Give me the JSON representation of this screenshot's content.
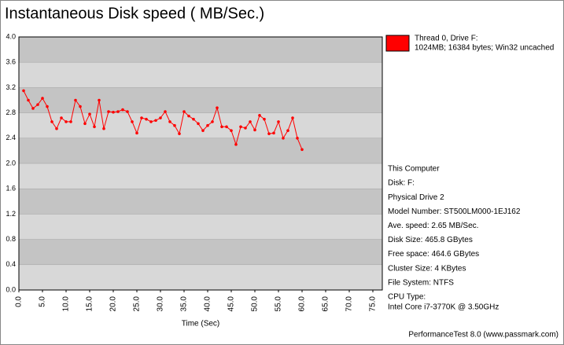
{
  "chart_data": {
    "type": "line",
    "title": "Instantaneous Disk speed ( MB/Sec.)",
    "x_label": "Time (Sec)",
    "footer": "PerformanceTest 8.0 (www.passmark.com)",
    "band_colors": [
      "#d8d8d8",
      "#c4c4c4"
    ],
    "xlim": [
      0,
      77
    ],
    "ylim": [
      0,
      4
    ],
    "xticks": [
      {
        "value": 0,
        "label": "0.0"
      },
      {
        "value": 5,
        "label": "5.0"
      },
      {
        "value": 10,
        "label": "10.0"
      },
      {
        "value": 15,
        "label": "15.0"
      },
      {
        "value": 20,
        "label": "20.0"
      },
      {
        "value": 25,
        "label": "25.0"
      },
      {
        "value": 30,
        "label": "30.0"
      },
      {
        "value": 35,
        "label": "35.0"
      },
      {
        "value": 40,
        "label": "40.0"
      },
      {
        "value": 45,
        "label": "45.0"
      },
      {
        "value": 50,
        "label": "50.0"
      },
      {
        "value": 55,
        "label": "55.0"
      },
      {
        "value": 60,
        "label": "60.0"
      },
      {
        "value": 65,
        "label": "65.0"
      },
      {
        "value": 70,
        "label": "70.0"
      },
      {
        "value": 75,
        "label": "75.0"
      }
    ],
    "yticks": [
      {
        "value": 0,
        "label": "0.0"
      },
      0.4,
      0.8,
      1.2,
      1.6,
      {
        "value": 2,
        "label": "2.0"
      },
      2.4,
      2.8,
      3.2,
      3.6,
      {
        "value": 4,
        "label": "4.0"
      }
    ],
    "x": [
      1,
      2,
      3,
      4,
      5,
      6,
      7,
      8,
      9,
      10,
      11,
      12,
      13,
      14,
      15,
      16,
      17,
      18,
      19,
      20,
      21,
      22,
      23,
      24,
      25,
      26,
      27,
      28,
      29,
      30,
      31,
      32,
      33,
      34,
      35,
      36,
      37,
      38,
      39,
      40,
      41,
      42,
      43,
      44,
      45,
      46,
      47,
      48,
      49,
      50,
      51,
      52,
      53,
      54,
      55,
      56,
      57,
      58,
      59,
      60
    ],
    "series": [
      {
        "name": "Thread 0, Drive F:",
        "subtitle": "1024MB; 16384 bytes; Win32 uncached",
        "color": "#ff0000",
        "values": [
          3.15,
          3.0,
          2.87,
          2.93,
          3.03,
          2.9,
          2.66,
          2.55,
          2.72,
          2.66,
          2.66,
          3.0,
          2.9,
          2.63,
          2.78,
          2.58,
          3.0,
          2.55,
          2.82,
          2.81,
          2.82,
          2.85,
          2.82,
          2.66,
          2.48,
          2.72,
          2.7,
          2.66,
          2.68,
          2.72,
          2.82,
          2.66,
          2.6,
          2.47,
          2.82,
          2.75,
          2.7,
          2.63,
          2.52,
          2.6,
          2.66,
          2.88,
          2.58,
          2.58,
          2.52,
          2.3,
          2.58,
          2.56,
          2.66,
          2.53,
          2.76,
          2.7,
          2.47,
          2.48,
          2.66,
          2.4,
          2.52,
          2.72,
          2.4,
          2.22
        ]
      }
    ],
    "info": [
      "This Computer",
      "Disk: F:",
      "Physical Drive 2",
      "Model Number: ST500LM000-1EJ162",
      "Ave. speed: 2.65 MB/Sec.",
      "Disk Size: 465.8 GBytes",
      "Free space: 464.6 GBytes",
      "Cluster Size: 4 KBytes",
      "File System: NTFS",
      "CPU Type:",
      "Intel Core i7-3770K @ 3.50GHz"
    ]
  }
}
